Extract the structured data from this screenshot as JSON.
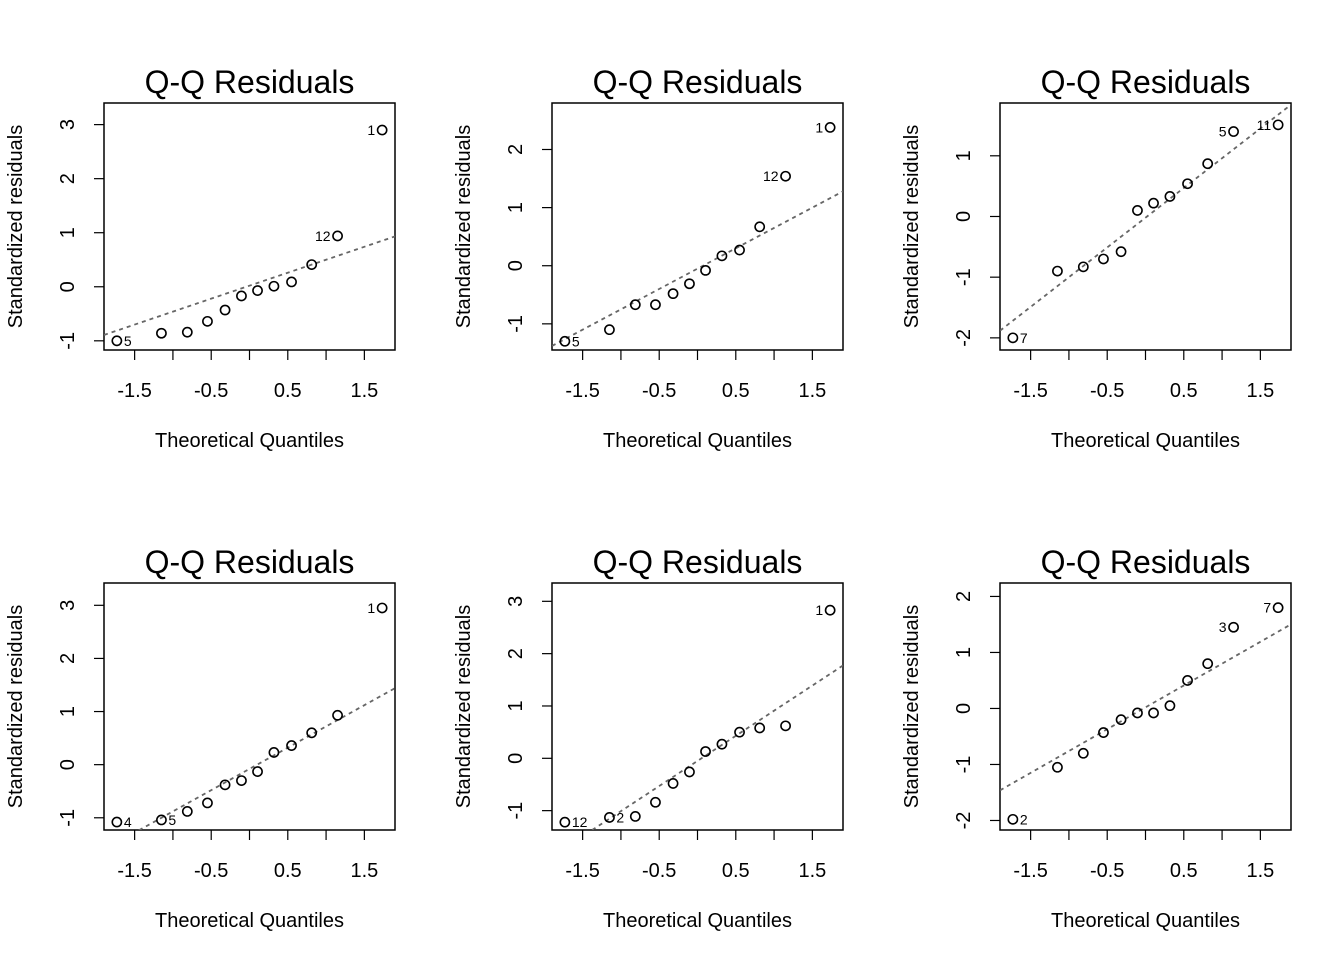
{
  "chart_data": [
    {
      "type": "scatter",
      "title": "Q-Q Residuals",
      "xlabel": "Theoretical Quantiles",
      "ylabel": "Standardized residuals",
      "xlim": [
        -1.9,
        1.9
      ],
      "ylim": [
        -1.17,
        3.4
      ],
      "xticks": [
        -1.5,
        -0.5,
        0.5,
        1.5
      ],
      "xticklabels": [
        "-1.5",
        "-0.5",
        "0.5",
        "1.5"
      ],
      "yticks": [
        -1,
        0,
        1,
        2,
        3
      ],
      "yticklabels": [
        "-1",
        "0",
        "1",
        "2",
        "3"
      ],
      "x": [
        -1.732,
        -1.15,
        -0.812,
        -0.549,
        -0.319,
        -0.105,
        0.105,
        0.319,
        0.549,
        0.812,
        1.15,
        1.732
      ],
      "y": [
        -1.0,
        -0.86,
        -0.84,
        -0.64,
        -0.43,
        -0.17,
        -0.07,
        0.01,
        0.09,
        0.41,
        0.94,
        2.9
      ],
      "point_labels": [
        {
          "index": 0,
          "text": "5"
        },
        {
          "index": 10,
          "text": "12"
        },
        {
          "index": 11,
          "text": "1"
        }
      ],
      "reference_line": {
        "intercept": 0.02,
        "slope": 0.48
      }
    },
    {
      "type": "scatter",
      "title": "Q-Q Residuals",
      "xlabel": "Theoretical Quantiles",
      "ylabel": "Standardized residuals",
      "xlim": [
        -1.9,
        1.9
      ],
      "ylim": [
        -1.45,
        2.8
      ],
      "xticks": [
        -1.5,
        -0.5,
        0.5,
        1.5
      ],
      "xticklabels": [
        "-1.5",
        "-0.5",
        "0.5",
        "1.5"
      ],
      "yticks": [
        -1,
        0,
        1,
        2
      ],
      "yticklabels": [
        "-1",
        "0",
        "1",
        "2"
      ],
      "x": [
        -1.732,
        -1.15,
        -0.812,
        -0.549,
        -0.319,
        -0.105,
        0.105,
        0.319,
        0.549,
        0.812,
        1.15,
        1.732
      ],
      "y": [
        -1.3,
        -1.1,
        -0.67,
        -0.67,
        -0.48,
        -0.31,
        -0.08,
        0.17,
        0.27,
        0.67,
        1.54,
        2.38
      ],
      "point_labels": [
        {
          "index": 0,
          "text": "5"
        },
        {
          "index": 10,
          "text": "12"
        },
        {
          "index": 11,
          "text": "1"
        }
      ],
      "reference_line": {
        "intercept": -0.05,
        "slope": 0.7
      }
    },
    {
      "type": "scatter",
      "title": "Q-Q Residuals",
      "xlabel": "Theoretical Quantiles",
      "ylabel": "Standardized residuals",
      "xlim": [
        -1.9,
        1.9
      ],
      "ylim": [
        -2.2,
        1.87
      ],
      "xticks": [
        -1.5,
        -0.5,
        0.5,
        1.5
      ],
      "xticklabels": [
        "-1.5",
        "-0.5",
        "0.5",
        "1.5"
      ],
      "yticks": [
        -2,
        -1,
        0,
        1
      ],
      "yticklabels": [
        "-2",
        "-1",
        "0",
        "1"
      ],
      "x": [
        -1.732,
        -1.15,
        -0.812,
        -0.549,
        -0.319,
        -0.105,
        0.105,
        0.319,
        0.549,
        0.812,
        1.15,
        1.732
      ],
      "y": [
        -2.0,
        -0.9,
        -0.83,
        -0.7,
        -0.58,
        0.1,
        0.22,
        0.33,
        0.54,
        0.87,
        1.4,
        1.51
      ],
      "point_labels": [
        {
          "index": 0,
          "text": "7"
        },
        {
          "index": 10,
          "text": "5"
        },
        {
          "index": 11,
          "text": "11"
        }
      ],
      "reference_line": {
        "intercept": -0.02,
        "slope": 0.98
      }
    },
    {
      "type": "scatter",
      "title": "Q-Q Residuals",
      "xlabel": "Theoretical Quantiles",
      "ylabel": "Standardized residuals",
      "xlim": [
        -1.9,
        1.9
      ],
      "ylim": [
        -1.23,
        3.42
      ],
      "xticks": [
        -1.5,
        -0.5,
        0.5,
        1.5
      ],
      "xticklabels": [
        "-1.5",
        "-0.5",
        "0.5",
        "1.5"
      ],
      "yticks": [
        -1,
        0,
        1,
        2,
        3
      ],
      "yticklabels": [
        "-1",
        "0",
        "1",
        "2",
        "3"
      ],
      "x": [
        -1.732,
        -1.15,
        -0.812,
        -0.549,
        -0.319,
        -0.105,
        0.105,
        0.319,
        0.549,
        0.812,
        1.15,
        1.732
      ],
      "y": [
        -1.08,
        -1.04,
        -0.88,
        -0.72,
        -0.38,
        -0.3,
        -0.13,
        0.23,
        0.36,
        0.6,
        0.93,
        2.95
      ],
      "point_labels": [
        {
          "index": 0,
          "text": "4"
        },
        {
          "index": 1,
          "text": "5"
        },
        {
          "index": 11,
          "text": "1"
        }
      ],
      "reference_line": {
        "intercept": -0.08,
        "slope": 0.8
      }
    },
    {
      "type": "scatter",
      "title": "Q-Q Residuals",
      "xlabel": "Theoretical Quantiles",
      "ylabel": "Standardized residuals",
      "xlim": [
        -1.9,
        1.9
      ],
      "ylim": [
        -1.37,
        3.35
      ],
      "xticks": [
        -1.5,
        -0.5,
        0.5,
        1.5
      ],
      "xticklabels": [
        "-1.5",
        "-0.5",
        "0.5",
        "1.5"
      ],
      "yticks": [
        -1,
        0,
        1,
        2,
        3
      ],
      "yticklabels": [
        "-1",
        "0",
        "1",
        "2",
        "3"
      ],
      "x": [
        -1.732,
        -1.15,
        -0.812,
        -0.549,
        -0.319,
        -0.105,
        0.105,
        0.319,
        0.549,
        0.812,
        1.15,
        1.732
      ],
      "y": [
        -1.22,
        -1.13,
        -1.11,
        -0.84,
        -0.48,
        -0.26,
        0.13,
        0.27,
        0.5,
        0.58,
        0.62,
        2.83
      ],
      "point_labels": [
        {
          "index": 0,
          "text": "12"
        },
        {
          "index": 1,
          "text": "2"
        },
        {
          "index": 11,
          "text": "1"
        }
      ],
      "reference_line": {
        "intercept": -0.05,
        "slope": 0.96
      }
    },
    {
      "type": "scatter",
      "title": "Q-Q Residuals",
      "xlabel": "Theoretical Quantiles",
      "ylabel": "Standardized residuals",
      "xlim": [
        -1.9,
        1.9
      ],
      "ylim": [
        -2.17,
        2.24
      ],
      "xticks": [
        -1.5,
        -0.5,
        0.5,
        1.5
      ],
      "xticklabels": [
        "-1.5",
        "-0.5",
        "0.5",
        "1.5"
      ],
      "yticks": [
        -2,
        -1,
        0,
        1,
        2
      ],
      "yticklabels": [
        "-2",
        "-1",
        "0",
        "1",
        "2"
      ],
      "x": [
        -1.732,
        -1.15,
        -0.812,
        -0.549,
        -0.319,
        -0.105,
        0.105,
        0.319,
        0.549,
        0.812,
        1.15,
        1.732
      ],
      "y": [
        -1.98,
        -1.05,
        -0.8,
        -0.43,
        -0.2,
        -0.08,
        -0.08,
        0.05,
        0.5,
        0.8,
        1.45,
        1.8
      ],
      "point_labels": [
        {
          "index": 0,
          "text": "2"
        },
        {
          "index": 10,
          "text": "3"
        },
        {
          "index": 11,
          "text": "7"
        }
      ],
      "reference_line": {
        "intercept": 0.02,
        "slope": 0.78
      }
    }
  ]
}
